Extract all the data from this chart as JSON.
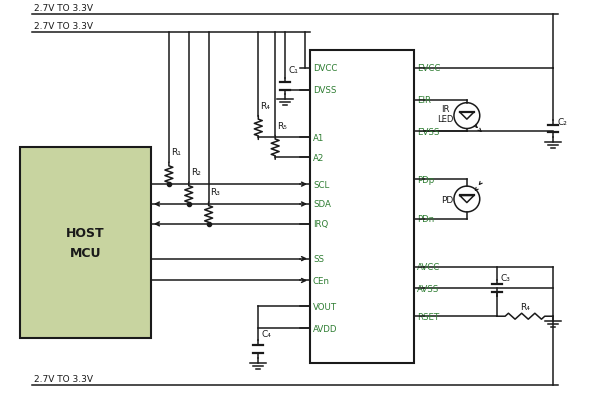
{
  "bg_color": "#ffffff",
  "green": "#2e7d32",
  "dark": "#1a1a1a",
  "mcu_fill": "#c8d4a0",
  "rail1_label": "2.7V TO 3.3V",
  "rail2_label": "2.7V TO 3.3V",
  "rail3_label": "2.7V TO 3.3V",
  "ic_pins_left": [
    "DVCC",
    "DVSS",
    "A1",
    "A2",
    "SCL",
    "SDA",
    "IRQ",
    "SS",
    "CEn",
    "VOUT",
    "AVDD"
  ],
  "ic_pins_right": [
    "EVCC",
    "EIR",
    "EVSS",
    "PDp",
    "PDn",
    "AVCC",
    "AVSS",
    "RSET"
  ],
  "mcu_label1": "HOST",
  "mcu_label2": "MCU",
  "ir_led_label": "IR\nLED",
  "pd_label": "PD",
  "comp_labels": [
    "C₁",
    "C₂",
    "C₃",
    "C₄"
  ],
  "res_labels_left": [
    "R₁",
    "R₂",
    "R₃",
    "R₄",
    "R₅"
  ],
  "res_label_right": "R₄"
}
